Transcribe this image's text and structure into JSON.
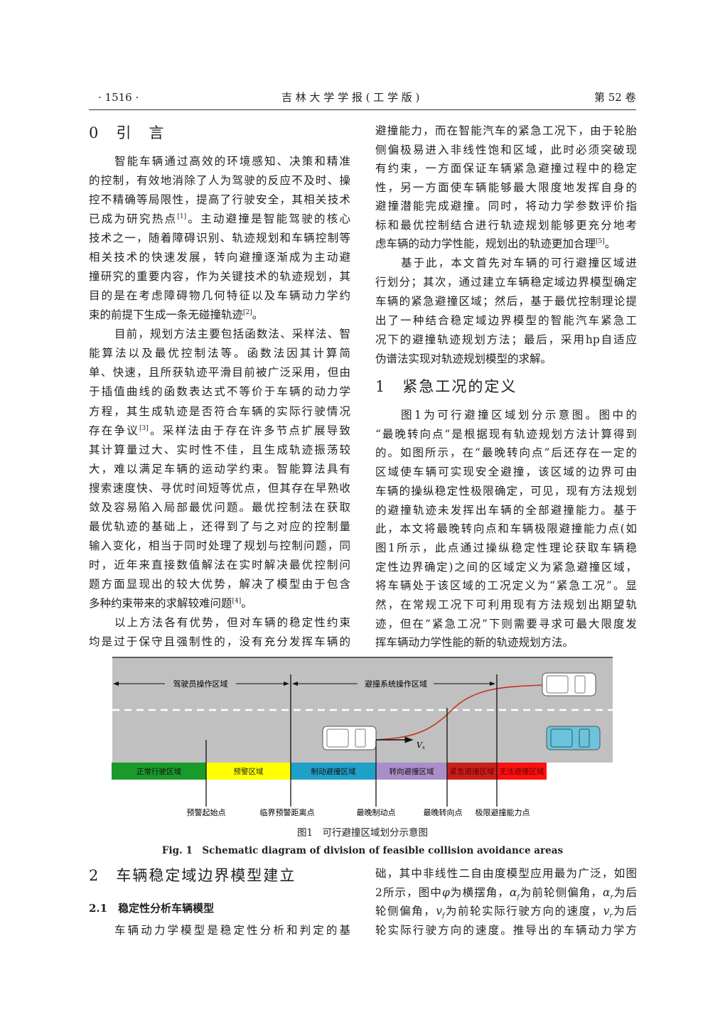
{
  "header": {
    "page_number": "· 1516 ·",
    "journal": "吉 林 大 学 学 报 ( 工 学 版 )",
    "volume": "第 52 卷"
  },
  "sections": {
    "s0": "0　引　言",
    "s1": "1　紧急工况的定义",
    "s2": "2　车辆稳定域边界模型建立",
    "s21": "2.1　稳定性分析车辆模型"
  },
  "left_column": [
    {
      "ind": true,
      "seg": [
        "智能车辆通过高效的环境感知、决策和精准"
      ]
    },
    {
      "seg": [
        "的控制，有效地消除了人为驾驶的反应不及时、操"
      ]
    },
    {
      "seg": [
        "控不精确等局限性，提高了行驶安全，其相关技术"
      ]
    },
    {
      "seg": [
        "已成为研究热点",
        {
          "sup": "[1]"
        },
        "。主动避撞是智能驾驶的核心"
      ]
    },
    {
      "seg": [
        "技术之一，随着障碍识别、轨迹规划和车辆控制等"
      ]
    },
    {
      "seg": [
        "相关技术的快速发展，转向避撞逐渐成为主动避"
      ]
    },
    {
      "seg": [
        "撞研究的重要内容，作为关键技术的轨迹规划，其"
      ]
    },
    {
      "seg": [
        "目的是在考虑障碍物几何特征以及车辆动力学约"
      ]
    },
    {
      "end": true,
      "seg": [
        "束的前提下生成一条无碰撞轨迹",
        {
          "sup": "[2]"
        },
        "。"
      ]
    },
    {
      "ind": true,
      "seg": [
        "目前，规划方法主要包括函数法、采样法、智"
      ]
    },
    {
      "seg": [
        "能算法以及最优控制法等。函数法因其计算简"
      ]
    },
    {
      "seg": [
        "单、快速，且所获轨迹平滑目前被广泛采用，但由"
      ]
    },
    {
      "seg": [
        "于插值曲线的函数表达式不等价于车辆的动力学"
      ]
    },
    {
      "seg": [
        "方程，其生成轨迹是否符合车辆的实际行驶情况"
      ]
    },
    {
      "seg": [
        "存在争议",
        {
          "sup": "[3]"
        },
        "。采样法由于存在许多节点扩展导致"
      ]
    },
    {
      "seg": [
        "其计算量过大、实时性不佳，且生成轨迹振荡较"
      ]
    },
    {
      "seg": [
        "大，难以满足车辆的运动学约束。智能算法具有"
      ]
    },
    {
      "seg": [
        "搜索速度快、寻优时间短等优点，但其存在早熟收"
      ]
    },
    {
      "seg": [
        "敛及容易陷入局部最优问题。最优控制法在获取"
      ]
    },
    {
      "seg": [
        "最优轨迹的基础上，还得到了与之对应的控制量"
      ]
    },
    {
      "seg": [
        "输入变化，相当于同时处理了规划与控制问题，同"
      ]
    },
    {
      "seg": [
        "时，近年来直接数值解法在实时解决最优控制问"
      ]
    },
    {
      "seg": [
        "题方面显现出的较大优势，解决了模型由于包含"
      ]
    },
    {
      "end": true,
      "seg": [
        "多种约束带来的求解较难问题",
        {
          "sup": "[4]"
        },
        "。"
      ]
    },
    {
      "ind": true,
      "seg": [
        "以上方法各有优势，但对车辆的稳定性约束"
      ]
    },
    {
      "seg": [
        "均是过于保守且强制性的，没有充分发挥车辆的"
      ]
    }
  ],
  "right_column_a": [
    {
      "seg": [
        "避撞能力，而在智能汽车的紧急工况下，由于轮胎"
      ]
    },
    {
      "seg": [
        "侧偏极易进入非线性饱和区域，此时必须突破现"
      ]
    },
    {
      "seg": [
        "有约束，一方面保证车辆紧急避撞过程中的稳定"
      ]
    },
    {
      "seg": [
        "性，另一方面使车辆能够最大限度地发挥自身的"
      ]
    },
    {
      "seg": [
        "避撞潜能完成避撞。同时，将动力学参数评价指"
      ]
    },
    {
      "seg": [
        "标和最优控制结合进行轨迹规划能够更充分地考"
      ]
    },
    {
      "end": true,
      "seg": [
        "虑车辆的动力学性能，规划出的轨迹更加合理",
        {
          "sup": "[5]"
        },
        "。"
      ]
    }
  ],
  "right_column_b": [
    {
      "ind": true,
      "seg": [
        "基于此，本文首先对车辆的可行避撞区域进"
      ]
    },
    {
      "seg": [
        "行划分；其次，通过建立车辆稳定域边界模型确定"
      ]
    },
    {
      "seg": [
        "车辆的紧急避撞区域；然后，基于最优控制理论提"
      ]
    },
    {
      "seg": [
        "出了一种结合稳定域边界模型的智能汽车紧急工"
      ]
    },
    {
      "seg": [
        "况下的避撞轨迹规划方法；最后，采用hp自适应"
      ]
    },
    {
      "end": true,
      "seg": [
        "伪谱法实现对轨迹规划模型的求解。"
      ]
    }
  ],
  "right_column_c": [
    {
      "ind": true,
      "seg": [
        "图1为可行避撞区域划分示意图。图中的"
      ]
    },
    {
      "seg": [
        "“最晚转向点”是根据现有轨迹规划方法计算得到"
      ]
    },
    {
      "seg": [
        "的。如图所示，在“最晚转向点”后还存在一定的"
      ]
    },
    {
      "seg": [
        "区域使车辆可实现安全避撞，该区域的边界可由"
      ]
    },
    {
      "seg": [
        "车辆的操纵稳定性极限确定，可见，现有方法规划"
      ]
    },
    {
      "seg": [
        "的避撞轨迹未发挥出车辆的全部避撞能力。基于"
      ]
    },
    {
      "seg": [
        "此，本文将最晚转向点和车辆极限避撞能力点(如"
      ]
    },
    {
      "seg": [
        "图1所示，此点通过操纵稳定性理论获取车辆稳"
      ]
    },
    {
      "seg": [
        "定性边界确定)之间的区域定义为紧急避撞区域，"
      ]
    },
    {
      "seg": [
        "将车辆处于该区域的工况定义为“紧急工况”。显"
      ]
    },
    {
      "seg": [
        "然，在常规工况下可利用现有方法规划出期望轨"
      ]
    },
    {
      "seg": [
        "迹，但在“紧急工况”下则需要寻求可最大限度发"
      ]
    },
    {
      "end": true,
      "seg": [
        "挥车辆动力学性能的新的轨迹规划方法。"
      ]
    }
  ],
  "left_bottom": [
    {
      "ind": true,
      "seg": [
        "车辆动力学模型是稳定性分析和判定的基"
      ]
    }
  ],
  "right_bottom": [
    {
      "seg": [
        "础，其中非线性二自由度模型应用最为广泛，如图"
      ]
    },
    {
      "seg": [
        "2所示，图中",
        {
          "i": "φ"
        },
        "为横摆角，",
        {
          "i": "α",
          "sub": "f"
        },
        "为前轮侧偏角，",
        {
          "i": "α",
          "sub": "r"
        },
        "为后"
      ]
    },
    {
      "seg": [
        "轮侧偏角，",
        {
          "i": "v",
          "sub": "f"
        },
        "为前轮实际行驶方向的速度，",
        {
          "i": "v",
          "sub": "r"
        },
        "为后"
      ]
    },
    {
      "seg": [
        "轮实际行驶方向的速度。推导出的车辆动力学方"
      ]
    }
  ],
  "figure": {
    "driver_zone": "驾驶员操作区域",
    "system_zone": "避撞系统操作区域",
    "velocity_label": "V",
    "velocity_sub": "x",
    "zones": [
      {
        "label": "正常行驶区域",
        "color": "#1a9a2a"
      },
      {
        "label": "预警区域",
        "color": "#ffff00"
      },
      {
        "label": "制动避撞区域",
        "color": "#1fa0c8"
      },
      {
        "label": "转向避撞区域",
        "color": "#a98fc9"
      },
      {
        "label": "紧急避撞区域",
        "color": "#c8201a"
      },
      {
        "label": "无法避撞区域",
        "color": "#ff1010"
      }
    ],
    "points": [
      "预警起始点",
      "临界预警距离点",
      "最晚制动点",
      "最晚转向点",
      "极限避撞能力点"
    ],
    "caption_cn": "图1　可行避撞区域划分示意图",
    "caption_en": "Fig. 1　Schematic diagram of division of feasible collision avoidance areas",
    "road_color": "#c0c0c0",
    "trajectory_color": "#c83020",
    "obstacle_car_color": "#6cc4dc"
  }
}
